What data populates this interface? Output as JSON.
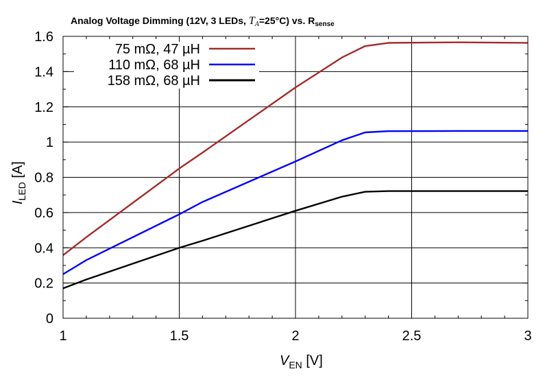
{
  "chart_data": {
    "type": "line",
    "title": {
      "main": "Analog Voltage Dimming (12V, 3 LEDs, ",
      "ta_symbol": "T",
      "ta_sub": "A",
      "ta_rest": "=25°C) vs. R",
      "rsense_sub": "sense"
    },
    "xlabel": {
      "symbol": "V",
      "sub": "EN",
      "unit": " [V]"
    },
    "ylabel": {
      "symbol": "I",
      "sub": "LED",
      "unit": " [A]"
    },
    "xlim": [
      1,
      3
    ],
    "ylim": [
      0,
      1.6
    ],
    "xticks": [
      "1",
      "1.5",
      "2",
      "2.5",
      "3"
    ],
    "yticks": [
      "0",
      "0.2",
      "0.4",
      "0.6",
      "0.8",
      "1",
      "1.2",
      "1.4",
      "1.6"
    ],
    "grid": true,
    "legend_position": "top-left",
    "series": [
      {
        "name": "75 mΩ, 47 µH",
        "color": "#a52a2a",
        "x": [
          1.0,
          1.1,
          1.5,
          1.6,
          2.0,
          2.2,
          2.3,
          2.4,
          2.7,
          3.0
        ],
        "y": [
          0.358,
          0.46,
          0.85,
          0.94,
          1.31,
          1.48,
          1.545,
          1.563,
          1.566,
          1.563
        ]
      },
      {
        "name": "110 mΩ, 68 µH",
        "color": "#0000ff",
        "x": [
          1.0,
          1.1,
          1.5,
          1.6,
          2.0,
          2.2,
          2.3,
          2.4,
          2.7,
          3.0
        ],
        "y": [
          0.25,
          0.33,
          0.59,
          0.66,
          0.89,
          1.01,
          1.055,
          1.062,
          1.063,
          1.063
        ]
      },
      {
        "name": "158 mΩ, 68 µH",
        "color": "#000000",
        "x": [
          1.0,
          1.1,
          1.5,
          1.6,
          2.0,
          2.2,
          2.3,
          2.4,
          2.7,
          3.0
        ],
        "y": [
          0.17,
          0.22,
          0.4,
          0.44,
          0.61,
          0.69,
          0.718,
          0.722,
          0.722,
          0.722
        ]
      }
    ]
  }
}
